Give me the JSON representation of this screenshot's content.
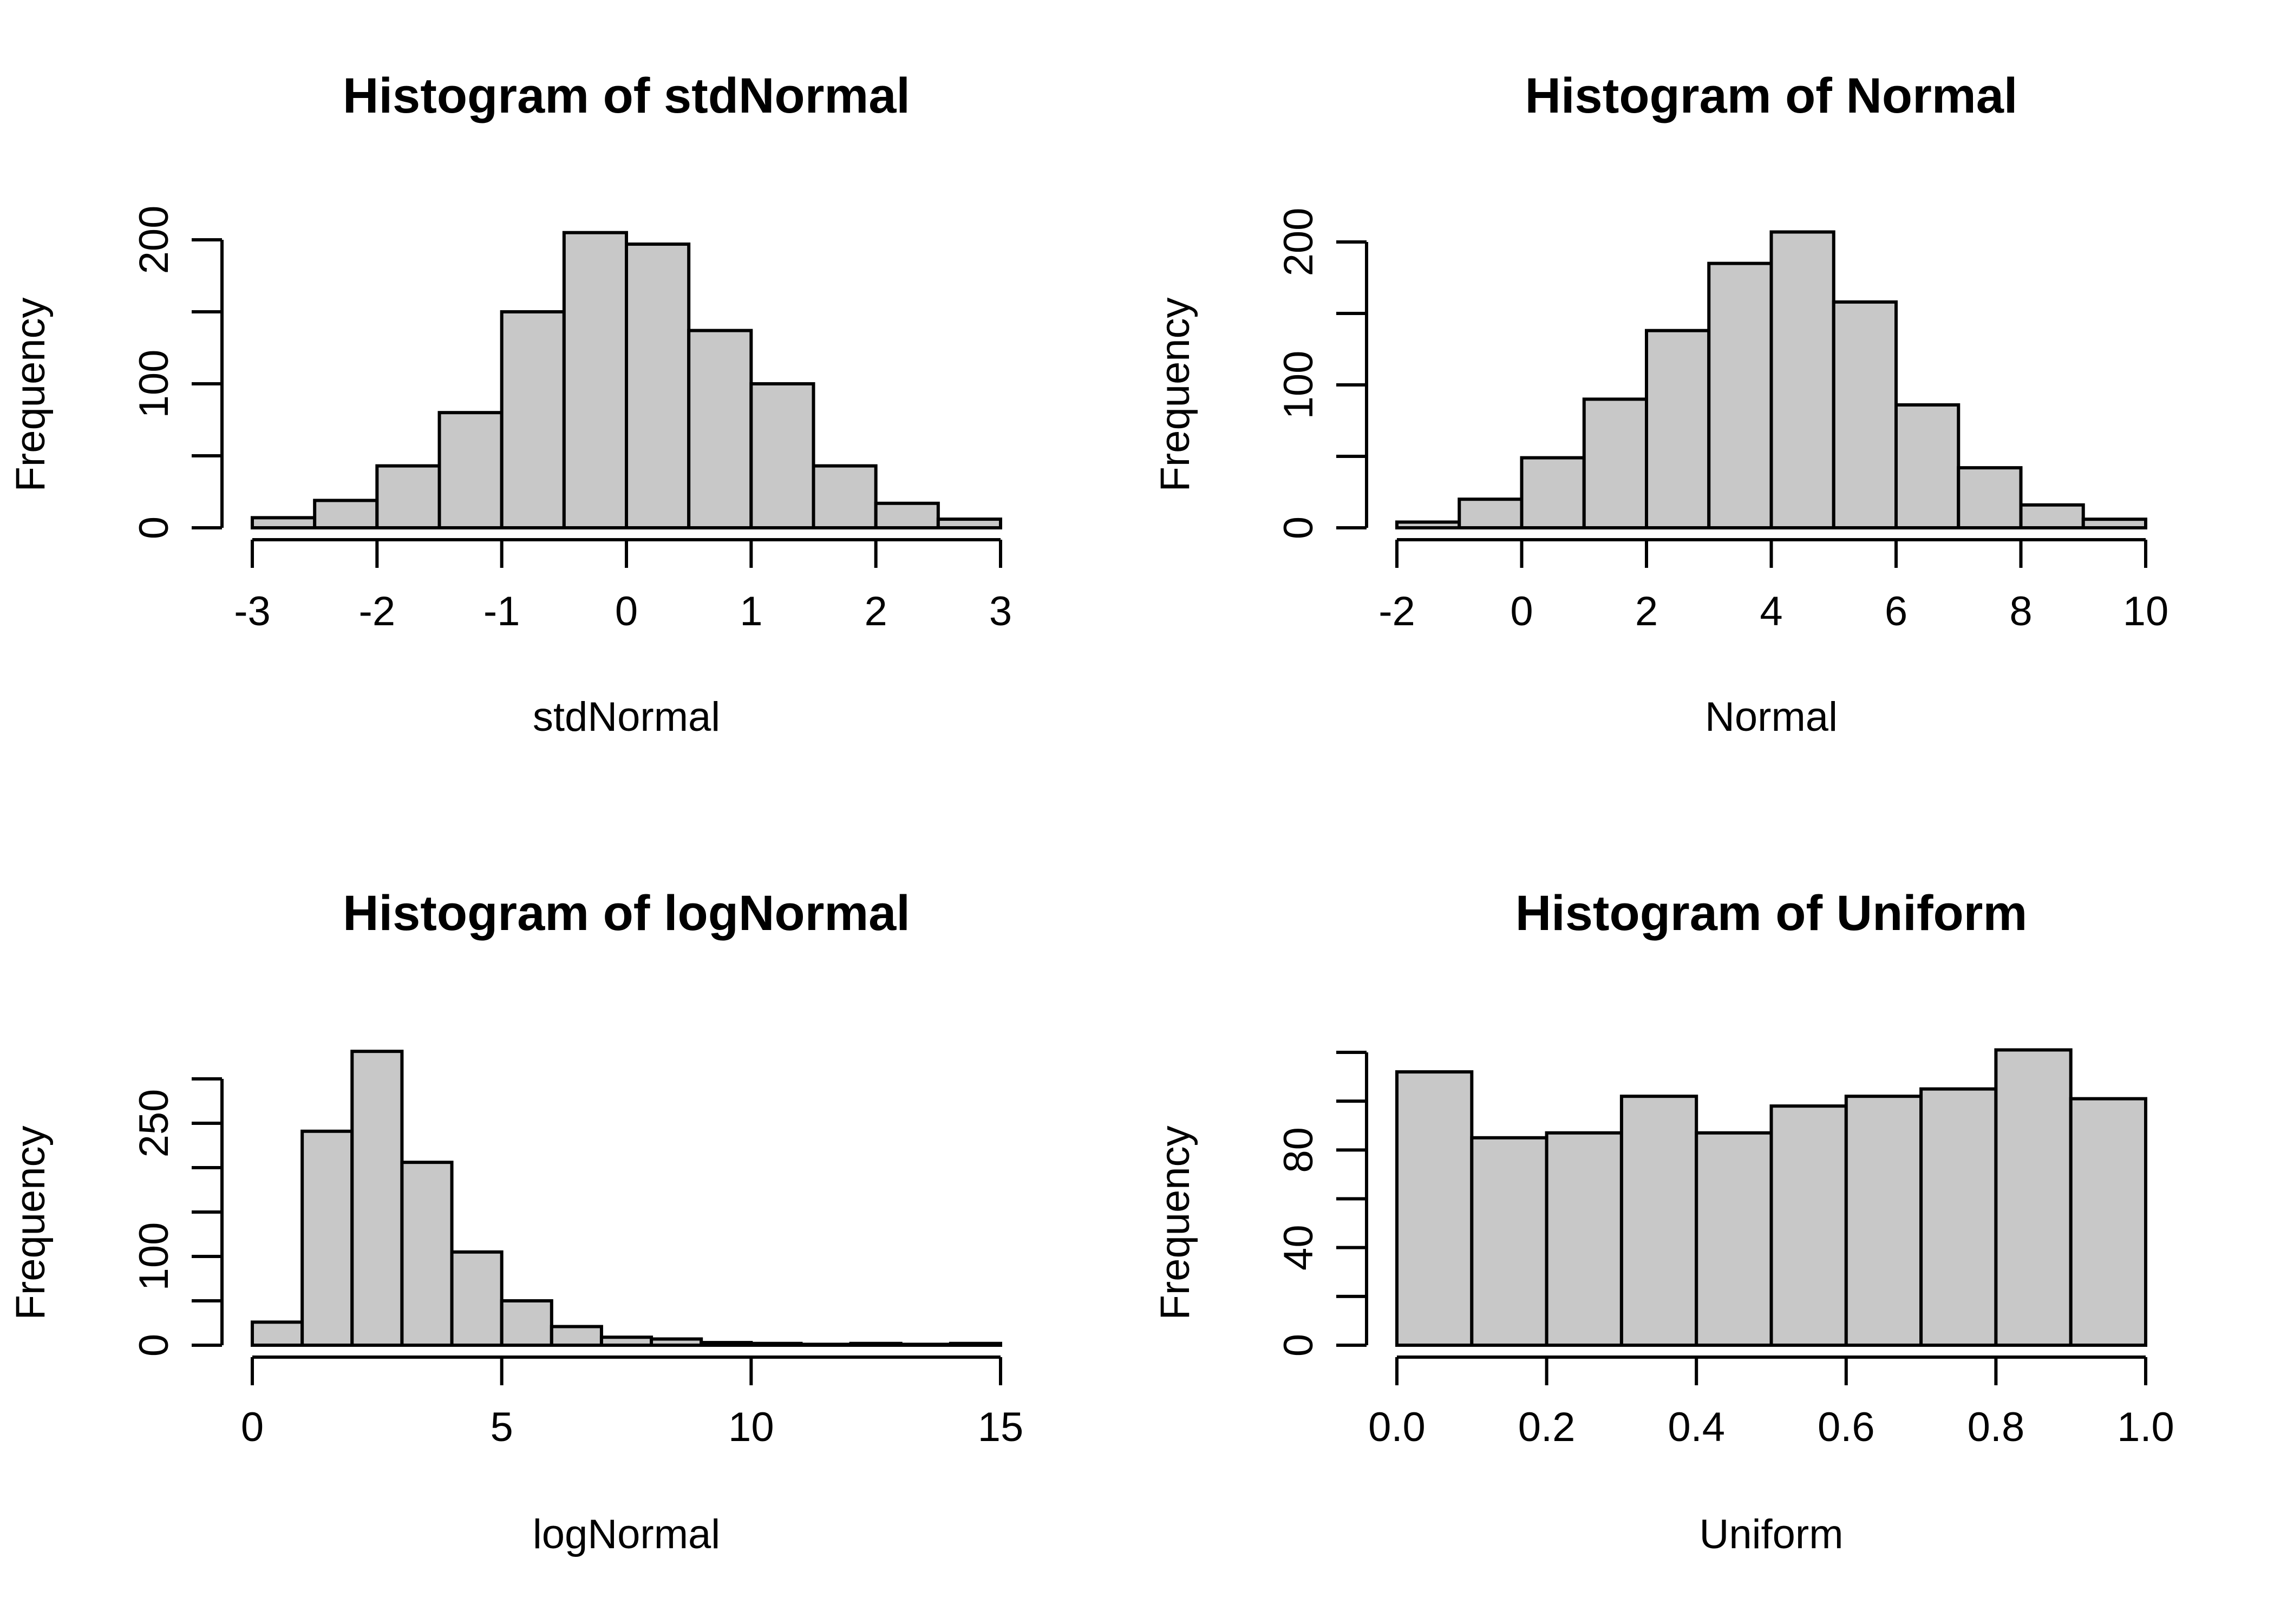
{
  "chart_data": [
    {
      "type": "bar",
      "title": "Histogram of stdNormal",
      "xlabel": "stdNormal",
      "ylabel": "Frequency",
      "bin_edges": [
        -3,
        -2.5,
        -2,
        -1.5,
        -1,
        -0.5,
        0,
        0.5,
        1,
        1.5,
        2,
        2.5,
        3
      ],
      "values": [
        7,
        19,
        43,
        80,
        150,
        205,
        197,
        137,
        100,
        43,
        17,
        6
      ],
      "xlim": [
        -3,
        3
      ],
      "ylim": [
        0,
        200
      ],
      "xticks": [
        -3,
        -2,
        -1,
        0,
        1,
        2,
        3
      ],
      "xtick_labels": [
        "-3",
        "-2",
        "-1",
        "0",
        "1",
        "2",
        "3"
      ],
      "yticks": [
        0,
        50,
        100,
        150,
        200
      ],
      "ytick_labels": [
        "0",
        "",
        "100",
        "",
        "200"
      ]
    },
    {
      "type": "bar",
      "title": "Histogram of Normal",
      "xlabel": "Normal",
      "ylabel": "Frequency",
      "bin_edges": [
        -2,
        -1,
        0,
        1,
        2,
        3,
        4,
        5,
        6,
        7,
        8,
        9,
        10
      ],
      "values": [
        4,
        20,
        49,
        90,
        138,
        185,
        207,
        158,
        86,
        42,
        16,
        6
      ],
      "xlim": [
        -2,
        10
      ],
      "ylim": [
        0,
        200
      ],
      "xticks": [
        -2,
        0,
        2,
        4,
        6,
        8,
        10
      ],
      "xtick_labels": [
        "-2",
        "0",
        "2",
        "4",
        "6",
        "8",
        "10"
      ],
      "yticks": [
        0,
        50,
        100,
        150,
        200
      ],
      "ytick_labels": [
        "0",
        "",
        "100",
        "",
        "200"
      ]
    },
    {
      "type": "bar",
      "title": "Histogram of logNormal",
      "xlabel": "logNormal",
      "ylabel": "Frequency",
      "bin_edges": [
        0,
        1,
        2,
        3,
        4,
        5,
        6,
        7,
        8,
        9,
        10,
        11,
        12,
        13,
        14,
        15
      ],
      "values": [
        26,
        241,
        331,
        206,
        105,
        50,
        21,
        9,
        7,
        3,
        2,
        1,
        2,
        1,
        2
      ],
      "xlim": [
        0,
        15
      ],
      "ylim": [
        0,
        300
      ],
      "xticks": [
        0,
        5,
        10,
        15
      ],
      "xtick_labels": [
        "0",
        "5",
        "10",
        "15"
      ],
      "yticks": [
        0,
        50,
        100,
        150,
        200,
        250,
        300
      ],
      "ytick_labels": [
        "0",
        "",
        "100",
        "",
        "",
        "250",
        ""
      ]
    },
    {
      "type": "bar",
      "title": "Histogram of Uniform",
      "xlabel": "Uniform",
      "ylabel": "Frequency",
      "bin_edges": [
        0,
        0.1,
        0.2,
        0.3,
        0.4,
        0.5,
        0.6,
        0.7,
        0.8,
        0.9,
        1.0
      ],
      "values": [
        112,
        85,
        87,
        102,
        87,
        98,
        102,
        105,
        121,
        101
      ],
      "xlim": [
        0,
        1
      ],
      "ylim": [
        0,
        120
      ],
      "xticks": [
        0,
        0.2,
        0.4,
        0.6,
        0.8,
        1.0
      ],
      "xtick_labels": [
        "0.0",
        "0.2",
        "0.4",
        "0.6",
        "0.8",
        "1.0"
      ],
      "yticks": [
        0,
        20,
        40,
        60,
        80,
        100,
        120
      ],
      "ytick_labels": [
        "0",
        "",
        "40",
        "",
        "80",
        "",
        ""
      ]
    }
  ]
}
